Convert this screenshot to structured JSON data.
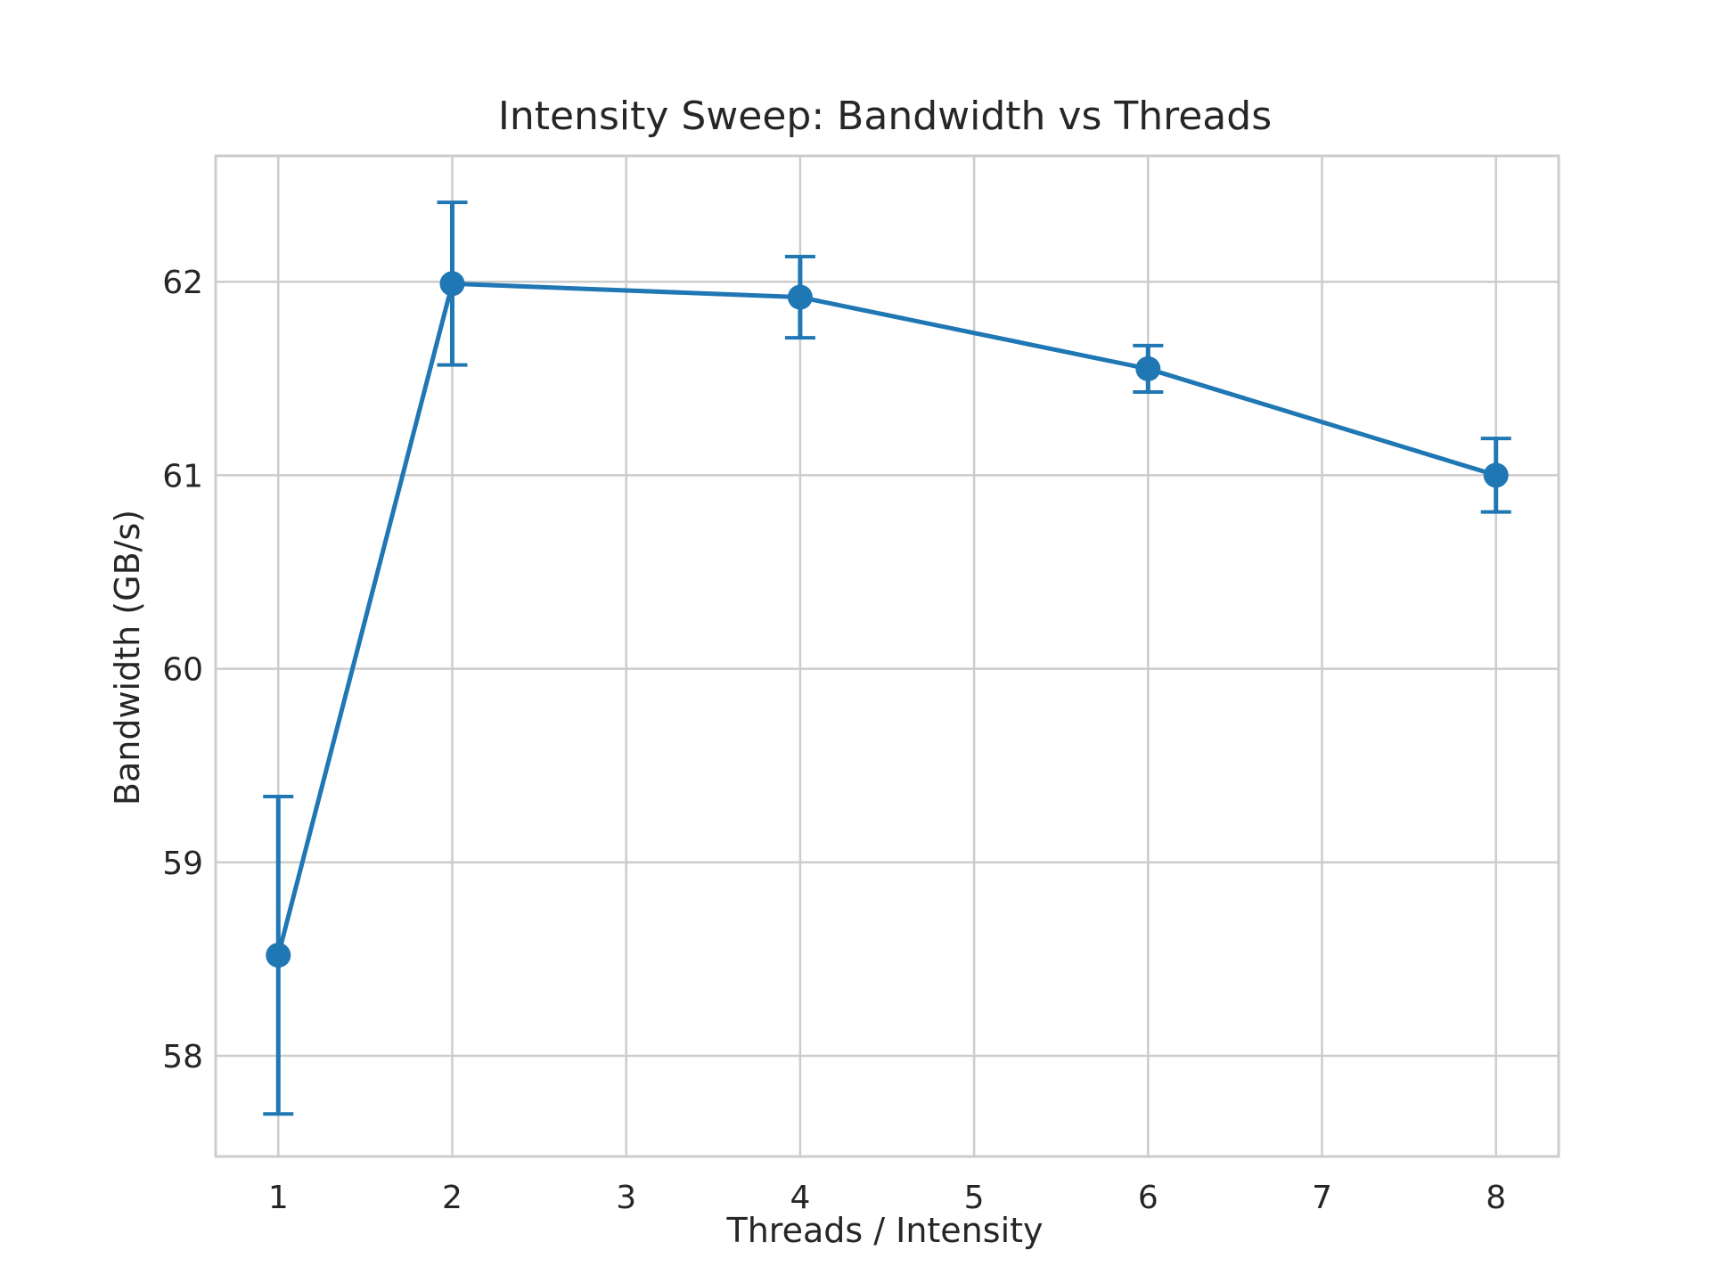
{
  "chart_data": {
    "type": "line",
    "title": "Intensity Sweep: Bandwidth vs Threads",
    "xlabel": "Threads / Intensity",
    "ylabel": "Bandwidth (GB/s)",
    "x_ticks": [
      1,
      2,
      3,
      4,
      5,
      6,
      7,
      8
    ],
    "y_ticks": [
      58,
      59,
      60,
      61,
      62
    ],
    "xlim": [
      0.64,
      8.36
    ],
    "ylim": [
      57.48,
      62.65
    ],
    "grid": true,
    "color": "#1f77b4",
    "series": [
      {
        "x": [
          1,
          2,
          4,
          6,
          8
        ],
        "y": [
          58.52,
          61.99,
          61.92,
          61.55,
          61.0
        ],
        "error": [
          0.82,
          0.42,
          0.21,
          0.12,
          0.19
        ]
      }
    ]
  }
}
